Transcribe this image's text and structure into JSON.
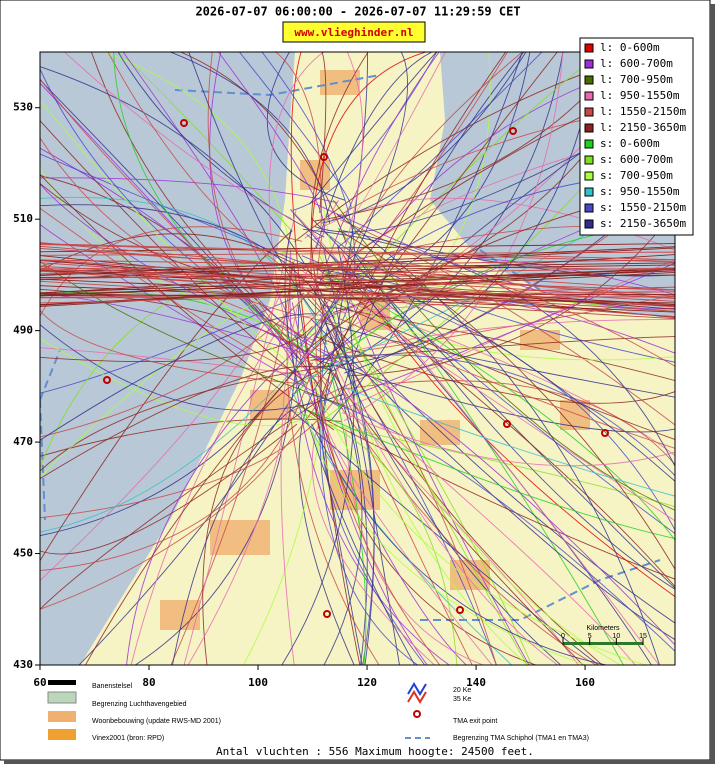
{
  "header": {
    "title": "2026-07-07 06:00:00 - 2026-07-07 11:29:59 CET",
    "link": "www.vlieghinder.nl"
  },
  "chart_data": {
    "type": "map",
    "xlim": [
      60,
      176.5
    ],
    "ylim": [
      430,
      540
    ],
    "xticks": [
      60,
      80,
      100,
      120,
      140,
      160
    ],
    "yticks": [
      430,
      450,
      470,
      490,
      510,
      530
    ],
    "legend": {
      "position": "upper right",
      "series": [
        {
          "name": "l: 0-600m",
          "color": "#e00000"
        },
        {
          "name": "l: 600-700m",
          "color": "#9b30d8"
        },
        {
          "name": "l: 700-950m",
          "color": "#4a6b00"
        },
        {
          "name": "l: 950-1550m",
          "color": "#e868b0"
        },
        {
          "name": "l: 1550-2150m",
          "color": "#c84848"
        },
        {
          "name": "l: 2150-3650m",
          "color": "#8b2420"
        },
        {
          "name": "s: 0-600m",
          "color": "#20d020"
        },
        {
          "name": "s: 600-700m",
          "color": "#80e020"
        },
        {
          "name": "s: 700-950m",
          "color": "#a8ff40"
        },
        {
          "name": "s: 950-1550m",
          "color": "#30c0c8"
        },
        {
          "name": "s: 1550-2150m",
          "color": "#4848c8"
        },
        {
          "name": "s: 2150-3650m",
          "color": "#30308c"
        }
      ]
    },
    "scale": {
      "title": "Kilometers",
      "ticks": [
        0,
        5,
        10,
        15
      ]
    }
  },
  "map_legend": [
    "Banenstelsel",
    "Begrenzing Luchthavengebied",
    "Woonbebouwing (update RWS-MD 2001)",
    "Vinex2001 (bron: RPD)",
    "20 Ke",
    "35 Ke",
    "TMA exit point",
    "Begrenzing TMA Schiphol  (TMA1 en TMA3)"
  ],
  "footer": "Antal vluchten : 556 Maximum hoogte: 24500 feet."
}
